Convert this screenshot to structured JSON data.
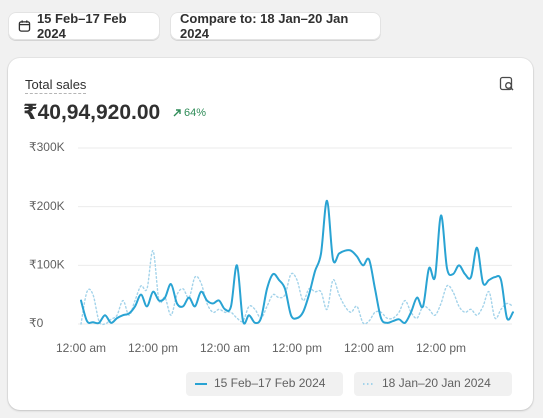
{
  "toolbar": {
    "date_range": "15 Feb–17 Feb 2024",
    "compare": "Compare to: 18 Jan–20 Jan 2024"
  },
  "metric": {
    "label": "Total sales",
    "value": "₹40,94,920.00",
    "change": "64%"
  },
  "chart_data": {
    "type": "line",
    "categories": [
      "12:00 am",
      null,
      null,
      null,
      null,
      null,
      null,
      null,
      null,
      null,
      null,
      null,
      "12:00 pm",
      null,
      null,
      null,
      null,
      null,
      null,
      null,
      null,
      null,
      null,
      null,
      "12:00 am",
      null,
      null,
      null,
      null,
      null,
      null,
      null,
      null,
      null,
      null,
      null,
      "12:00 pm",
      null,
      null,
      null,
      null,
      null,
      null,
      null,
      null,
      null,
      null,
      null,
      "12:00 am",
      null,
      null,
      null,
      null,
      null,
      null,
      null,
      null,
      null,
      null,
      null,
      "12:00 pm",
      null,
      null,
      null,
      null,
      null,
      null,
      null,
      null,
      null,
      null,
      null,
      null
    ],
    "series": [
      {
        "name": "15 Feb–17 Feb 2024",
        "color": "#29a3d3",
        "line_style": "solid",
        "values": [
          40000,
          5000,
          3000,
          2000,
          15000,
          2000,
          10000,
          15000,
          18000,
          30000,
          50000,
          30000,
          55000,
          40000,
          45000,
          68000,
          35000,
          30000,
          45000,
          30000,
          55000,
          40000,
          35000,
          40000,
          25000,
          30000,
          100000,
          5000,
          15000,
          2000,
          10000,
          60000,
          85000,
          75000,
          60000,
          15000,
          10000,
          20000,
          50000,
          90000,
          120000,
          210000,
          110000,
          120000,
          125000,
          125000,
          115000,
          100000,
          110000,
          60000,
          10000,
          2000,
          5000,
          8000,
          2000,
          20000,
          45000,
          30000,
          95000,
          80000,
          185000,
          95000,
          85000,
          100000,
          85000,
          80000,
          130000,
          70000,
          75000,
          80000,
          75000,
          10000,
          20000
        ]
      },
      {
        "name": "18 Jan–20 Jan 2024",
        "color": "#a3d3ea",
        "line_style": "dotted",
        "values": [
          0,
          55000,
          50000,
          5000,
          0,
          8000,
          15000,
          40000,
          15000,
          40000,
          65000,
          60000,
          125000,
          40000,
          45000,
          15000,
          50000,
          60000,
          45000,
          80000,
          70000,
          35000,
          20000,
          25000,
          20000,
          20000,
          10000,
          5000,
          30000,
          25000,
          10000,
          30000,
          50000,
          45000,
          50000,
          85000,
          75000,
          40000,
          60000,
          55000,
          55000,
          25000,
          75000,
          50000,
          30000,
          20000,
          30000,
          2000,
          5000,
          20000,
          20000,
          10000,
          10000,
          20000,
          40000,
          20000,
          10000,
          30000,
          25000,
          15000,
          35000,
          65000,
          55000,
          30000,
          20000,
          25000,
          15000,
          30000,
          55000,
          10000,
          25000,
          35000,
          30000
        ]
      }
    ],
    "ylim": [
      0,
      300000
    ],
    "yticks": [
      {
        "value": 0,
        "label": "₹0"
      },
      {
        "value": 100000,
        "label": "₹100K"
      },
      {
        "value": 200000,
        "label": "₹200K"
      },
      {
        "value": 300000,
        "label": "₹300K"
      }
    ],
    "grid": true,
    "legend": "bottom-right"
  }
}
